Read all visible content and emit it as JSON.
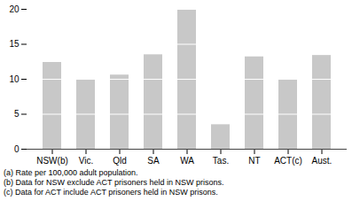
{
  "chart_data": {
    "type": "bar",
    "categories": [
      "NSW(b)",
      "Vic.",
      "Qld",
      "SA",
      "WA",
      "Tas.",
      "NT",
      "ACT(c)",
      "Aust."
    ],
    "values": [
      12.4,
      10.0,
      10.6,
      13.5,
      20.0,
      3.5,
      13.2,
      10.0,
      13.4
    ],
    "color": "#c8c8c8",
    "ylim": [
      0,
      20
    ],
    "yticks": [
      0,
      5,
      10,
      15,
      20
    ],
    "grid": false,
    "annotations": [
      "(a) Rate per 100,000 adult population.",
      "(b) Data for NSW exclude ACT prisoners held in NSW prisons.",
      "(c) Data for ACT include ACT prisoners held in NSW prisons."
    ]
  }
}
